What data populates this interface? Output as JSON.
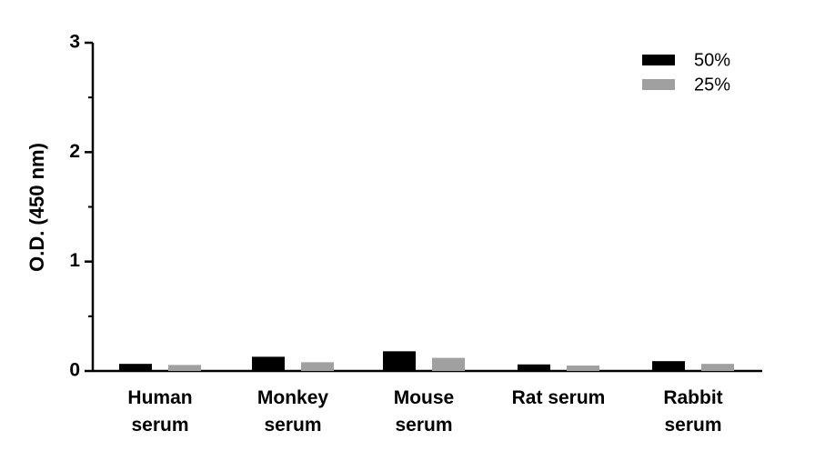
{
  "chart_data": {
    "type": "bar",
    "y_label": "O.D. (450 nm)",
    "categories": [
      "Human serum",
      "Monkey serum",
      "Mouse serum",
      "Rat serum",
      "Rabbit serum"
    ],
    "series": [
      {
        "name": "50%",
        "color": "#000000",
        "values": [
          0.065,
          0.13,
          0.18,
          0.06,
          0.09
        ]
      },
      {
        "name": "25%",
        "color": "#a0a0a0",
        "values": [
          0.055,
          0.08,
          0.12,
          0.05,
          0.065
        ]
      }
    ],
    "ylim": [
      0,
      3
    ],
    "yticks": [
      0,
      1,
      2,
      3
    ],
    "minor_yticks": [
      0.5,
      1.5,
      2.5
    ],
    "legend": "top-right",
    "grid": false
  }
}
